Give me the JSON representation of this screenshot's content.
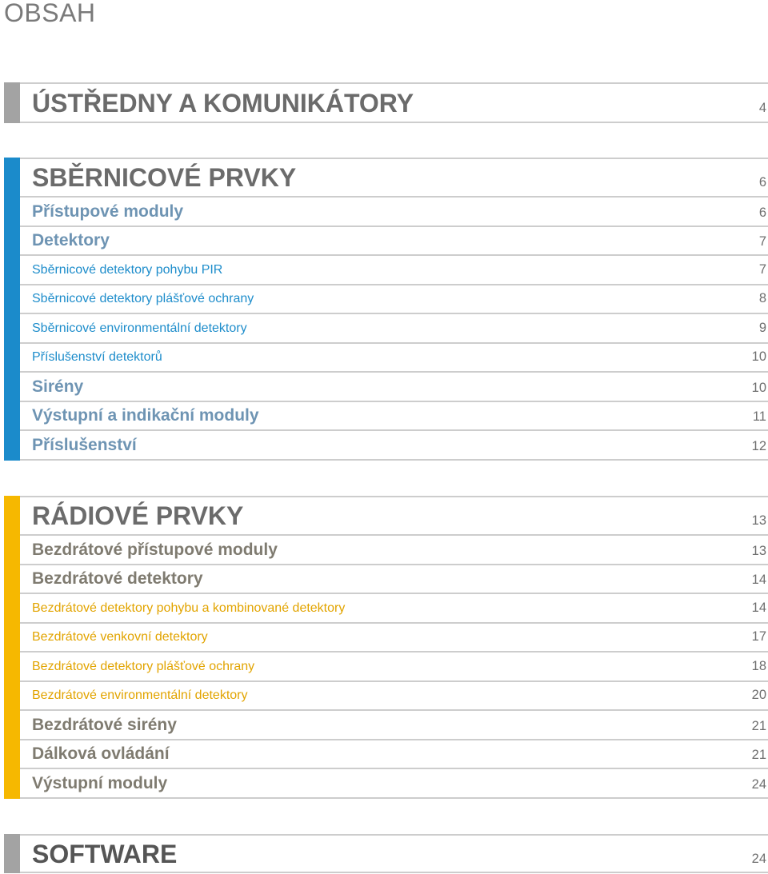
{
  "document": {
    "title": "OBSAH"
  },
  "colors": {
    "heading": "#6b6b6b",
    "page_number": "#6f6f6f",
    "rule": "#cdcdcd"
  },
  "sections": [
    {
      "heading": "ÚSTŘEDNY A KOMUNIKÁTORY",
      "page": "4",
      "accent": "#a3a3a3",
      "heading_color": "#6b6b6b",
      "items": []
    },
    {
      "heading": "SBĚRNICOVÉ PRVKY",
      "page": "6",
      "accent": "#1b8bcb",
      "heading_color": "#6b6b6b",
      "subheading_color": "#6e94b3",
      "item_color": "#1e8dcb",
      "items": [
        {
          "label": "Přístupové moduly",
          "page": "6"
        },
        {
          "label": "Detektory",
          "page": "7"
        },
        {
          "label": "Sběrnicové detektory pohybu PIR",
          "page": "7"
        },
        {
          "label": "Sběrnicové detektory plášťové ochrany",
          "page": "8"
        },
        {
          "label": "Sběrnicové environmentální detektory",
          "page": "9"
        },
        {
          "label": "Příslušenství detektorů",
          "page": "10"
        },
        {
          "label": "Sirény",
          "page": "10"
        },
        {
          "label": "Výstupní a indikační moduly",
          "page": "11"
        },
        {
          "label": "Příslušenství",
          "page": "12"
        }
      ]
    },
    {
      "heading": "RÁDIOVÉ PRVKY",
      "page": "13",
      "accent": "#f6b800",
      "heading_color": "#6b6b6b",
      "subheading_color": "#7f7b70",
      "item_color": "#e2a400",
      "items": [
        {
          "label": "Bezdrátové přístupové moduly",
          "page": "13"
        },
        {
          "label": "Bezdrátové detektory",
          "page": "14"
        },
        {
          "label": "Bezdrátové detektory pohybu a kombinované detektory",
          "page": "14"
        },
        {
          "label": "Bezdrátové venkovní detektory",
          "page": "17"
        },
        {
          "label": "Bezdrátové detektory plášťové ochrany",
          "page": "18"
        },
        {
          "label": "Bezdrátové environmentální detektory",
          "page": "20"
        },
        {
          "label": "Bezdrátové sirény",
          "page": "21"
        },
        {
          "label": "Dálková ovládání",
          "page": "21"
        },
        {
          "label": "Výstupní moduly",
          "page": "24"
        }
      ]
    },
    {
      "heading": "SOFTWARE",
      "page": "24",
      "accent": "#a3a3a3",
      "heading_color": "#555555",
      "items": []
    }
  ]
}
